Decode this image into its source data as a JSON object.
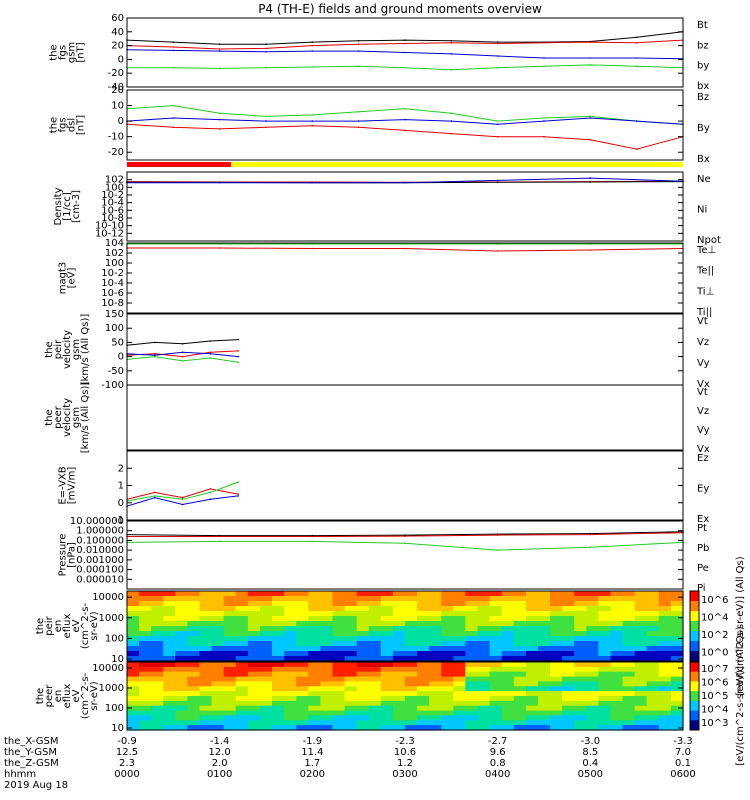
{
  "title": "P4 (TH-E) fields and ground moments overview",
  "date": "2019 Aug 18",
  "colors": {
    "black": "#000000",
    "red": "#e00000",
    "green": "#22cc22",
    "blue": "#0000d0",
    "bar_red": "#ff0000",
    "bar_yellow": "#ffff00"
  },
  "chart_data": [
    {
      "type": "line",
      "id": "fgs_gsm_total",
      "ylabel": [
        "the",
        "fgs",
        "gsm",
        "[nT]"
      ],
      "ylim": [
        -40,
        60
      ],
      "ticks": [
        -40,
        -20,
        0,
        20,
        40,
        60
      ],
      "tick_labels": [
        "-40",
        "-20",
        "0",
        "20",
        "40",
        "60"
      ],
      "legend": [
        {
          "name": "Bt",
          "color": "black"
        },
        {
          "name": "bz",
          "color": "red"
        },
        {
          "name": "by",
          "color": "green"
        },
        {
          "name": "bx",
          "color": "blue"
        }
      ],
      "series": [
        {
          "name": "Bt",
          "color": "black",
          "x": [
            0,
            0.5,
            1,
            1.5,
            2,
            2.5,
            3,
            3.5,
            4,
            4.5,
            5,
            5.5,
            6
          ],
          "y": [
            28,
            25,
            22,
            22,
            25,
            27,
            28,
            27,
            25,
            25,
            26,
            32,
            40
          ]
        },
        {
          "name": "bz",
          "color": "red",
          "x": [
            0,
            0.5,
            1,
            1.5,
            2,
            2.5,
            3,
            3.5,
            4,
            4.5,
            5,
            5.5,
            6
          ],
          "y": [
            20,
            18,
            15,
            16,
            20,
            22,
            23,
            24,
            23,
            24,
            25,
            24,
            28
          ]
        },
        {
          "name": "by",
          "color": "green",
          "x": [
            0,
            0.5,
            1,
            1.5,
            2,
            2.5,
            3,
            3.5,
            4,
            4.5,
            5,
            5.5,
            6
          ],
          "y": [
            -12,
            -12,
            -13,
            -12,
            -11,
            -10,
            -12,
            -15,
            -12,
            -10,
            -8,
            -10,
            -12
          ]
        },
        {
          "name": "bx",
          "color": "blue",
          "x": [
            0,
            0.5,
            1,
            1.5,
            2,
            2.5,
            3,
            3.5,
            4,
            4.5,
            5,
            5.5,
            6
          ],
          "y": [
            14,
            13,
            12,
            11,
            12,
            12,
            10,
            8,
            5,
            2,
            2,
            2,
            1
          ]
        }
      ]
    },
    {
      "type": "line",
      "id": "fgs_dsl",
      "ylabel": [
        "the",
        "fgs",
        "dsl",
        "[nT]"
      ],
      "ylim": [
        -25,
        20
      ],
      "ticks": [
        -20,
        -10,
        0,
        10,
        20
      ],
      "tick_labels": [
        "-20",
        "-10",
        "0",
        "10",
        "20"
      ],
      "legend": [
        {
          "name": "Bz",
          "color": "red"
        },
        {
          "name": "By",
          "color": "green"
        },
        {
          "name": "Bx",
          "color": "blue"
        }
      ],
      "series": [
        {
          "name": "Bz",
          "color": "red",
          "x": [
            0,
            0.5,
            1,
            1.5,
            2,
            2.5,
            3,
            3.5,
            4,
            4.5,
            5,
            5.5,
            6
          ],
          "y": [
            -2,
            -4,
            -5,
            -4,
            -3,
            -4,
            -6,
            -8,
            -10,
            -10,
            -12,
            -18,
            -10
          ]
        },
        {
          "name": "By",
          "color": "green",
          "x": [
            0,
            0.5,
            1,
            1.5,
            2,
            2.5,
            3,
            3.5,
            4,
            4.5,
            5,
            5.5,
            6
          ],
          "y": [
            8,
            10,
            5,
            3,
            4,
            6,
            8,
            5,
            0,
            2,
            3,
            0,
            -2
          ]
        },
        {
          "name": "Bx",
          "color": "blue",
          "x": [
            0,
            0.5,
            1,
            1.5,
            2,
            2.5,
            3,
            3.5,
            4,
            4.5,
            5,
            5.5,
            6
          ],
          "y": [
            0,
            2,
            1,
            0,
            0,
            0,
            1,
            0,
            -2,
            0,
            2,
            0,
            -2
          ]
        }
      ]
    },
    {
      "type": "line",
      "id": "density",
      "ylabel": [
        "Density",
        "[1/cc]",
        "[cm-3]"
      ],
      "ylog": true,
      "ylim": [
        -14,
        4
      ],
      "ticks": [
        -12,
        -10,
        -8,
        -6,
        -4,
        -2,
        0,
        2
      ],
      "tick_labels": [
        "10-12",
        "10-10",
        "10-8",
        "10-6",
        "10-4",
        "10-2",
        "100",
        "102"
      ],
      "legend": [
        {
          "name": "Ne",
          "color": "red"
        },
        {
          "name": "Ni",
          "color": "black"
        },
        {
          "name": "Npot",
          "color": "blue"
        }
      ],
      "series": [
        {
          "name": "Ne",
          "color": "red",
          "x": [
            0,
            1,
            2,
            3,
            4,
            5,
            6
          ],
          "y": [
            1.5,
            1.4,
            1.4,
            1.3,
            1.4,
            1.5,
            1.6
          ]
        },
        {
          "name": "Ni",
          "color": "black",
          "x": [
            0,
            1,
            2,
            3,
            4,
            5,
            6
          ],
          "y": [
            1.3,
            1.3,
            1.2,
            1.2,
            1.3,
            1.4,
            1.5
          ]
        },
        {
          "name": "Npot",
          "color": "blue",
          "x": [
            0,
            1,
            2,
            3,
            4,
            5,
            6
          ],
          "y": [
            1.2,
            1.2,
            1.2,
            1.2,
            1.8,
            2.4,
            1.6
          ]
        }
      ]
    },
    {
      "type": "line",
      "id": "temperature",
      "ylabel": [
        "magt3",
        "[eV]"
      ],
      "ylog": true,
      "ylim": [
        -10,
        4
      ],
      "ticks": [
        -8,
        -6,
        -4,
        -2,
        0,
        2,
        4
      ],
      "tick_labels": [
        "10-8",
        "10-6",
        "10-4",
        "10-2",
        "100",
        "102",
        "104"
      ],
      "legend": [
        {
          "name": "Te⊥",
          "color": "red"
        },
        {
          "name": "Te||",
          "color": "black"
        },
        {
          "name": "Ti⊥",
          "color": "blue"
        },
        {
          "name": "Ti||",
          "color": "green"
        }
      ],
      "series": [
        {
          "name": "Te⊥",
          "color": "red",
          "x": [
            0,
            1,
            2,
            3,
            4,
            5,
            6
          ],
          "y": [
            3.0,
            3.0,
            2.9,
            2.9,
            2.4,
            2.6,
            2.9
          ]
        },
        {
          "name": "Ti||",
          "color": "green",
          "x": [
            0,
            1,
            2,
            3,
            4,
            5,
            6
          ],
          "y": [
            3.8,
            3.8,
            3.8,
            3.8,
            3.8,
            3.8,
            3.8
          ]
        }
      ]
    },
    {
      "type": "line",
      "id": "peir_velocity",
      "ylabel": [
        "the",
        "peir",
        "velocity",
        "gsm",
        "[km/s (All Qs)]"
      ],
      "ylim": [
        -100,
        150
      ],
      "ticks": [
        -100,
        -50,
        0,
        50,
        100,
        150
      ],
      "tick_labels": [
        "-100",
        "-50",
        "0",
        "50",
        "100",
        "150"
      ],
      "legend": [
        {
          "name": "Vt",
          "color": "black"
        },
        {
          "name": "Vz",
          "color": "red"
        },
        {
          "name": "Vy",
          "color": "green"
        },
        {
          "name": "Vx",
          "color": "blue"
        }
      ],
      "series": [
        {
          "name": "Vt",
          "color": "black",
          "x": [
            0,
            0.3,
            0.6,
            0.9,
            1.2
          ],
          "y": [
            40,
            50,
            45,
            55,
            60
          ]
        },
        {
          "name": "Vz",
          "color": "red",
          "x": [
            0,
            0.3,
            0.6,
            0.9,
            1.2
          ],
          "y": [
            5,
            10,
            0,
            15,
            20
          ]
        },
        {
          "name": "Vy",
          "color": "green",
          "x": [
            0,
            0.3,
            0.6,
            0.9,
            1.2
          ],
          "y": [
            -10,
            0,
            -15,
            -5,
            -20
          ]
        },
        {
          "name": "Vx",
          "color": "blue",
          "x": [
            0,
            0.3,
            0.6,
            0.9,
            1.2
          ],
          "y": [
            10,
            5,
            15,
            10,
            0
          ]
        }
      ]
    },
    {
      "type": "line",
      "id": "peer_velocity",
      "ylabel": [
        "the",
        "peer",
        "velocity",
        "gsm",
        "[km/s (All Qs)]"
      ],
      "ylim": [
        -100,
        150
      ],
      "ticks": [],
      "tick_labels": [],
      "legend": [
        {
          "name": "Vt",
          "color": "black"
        },
        {
          "name": "Vz",
          "color": "red"
        },
        {
          "name": "Vy",
          "color": "green"
        },
        {
          "name": "Vx",
          "color": "blue"
        }
      ],
      "series": []
    },
    {
      "type": "line",
      "id": "efield",
      "ylabel": [
        "E=-VXB",
        "[mV/m]"
      ],
      "ylim": [
        -1,
        3
      ],
      "ticks": [
        -1,
        0,
        1,
        2
      ],
      "tick_labels": [
        "-1",
        "0",
        "1",
        "2"
      ],
      "legend": [
        {
          "name": "Ez",
          "color": "red"
        },
        {
          "name": "Ey",
          "color": "green"
        },
        {
          "name": "Ex",
          "color": "blue"
        }
      ],
      "series": [
        {
          "name": "Ez",
          "color": "red",
          "x": [
            0,
            0.3,
            0.6,
            0.9,
            1.2
          ],
          "y": [
            0.2,
            0.6,
            0.3,
            0.8,
            0.5
          ]
        },
        {
          "name": "Ey",
          "color": "green",
          "x": [
            0,
            0.3,
            0.6,
            0.9,
            1.2
          ],
          "y": [
            0.1,
            0.4,
            0.2,
            0.6,
            1.2
          ]
        },
        {
          "name": "Ex",
          "color": "blue",
          "x": [
            0,
            0.3,
            0.6,
            0.9,
            1.2
          ],
          "y": [
            -0.2,
            0.3,
            -0.1,
            0.2,
            0.4
          ]
        }
      ]
    },
    {
      "type": "line",
      "id": "pressure",
      "ylabel": [
        "Pressure",
        "[nPa]"
      ],
      "ylog": true,
      "ylim": [
        -6,
        1
      ],
      "ticks": [
        -5,
        -4,
        -3,
        -2,
        -1,
        0,
        1
      ],
      "tick_labels": [
        "0.000010",
        "0.000100",
        "0.001000",
        "0.010000",
        "0.100000",
        "1.000000",
        "10.000000"
      ],
      "legend": [
        {
          "name": "Pt",
          "color": "black"
        },
        {
          "name": "Pb",
          "color": "red"
        },
        {
          "name": "Pe",
          "color": "green"
        },
        {
          "name": "Pi",
          "color": "blue"
        }
      ],
      "series": [
        {
          "name": "Pt",
          "color": "black",
          "x": [
            0,
            1,
            2,
            3,
            4,
            5,
            6
          ],
          "y": [
            -0.4,
            -0.5,
            -0.5,
            -0.45,
            -0.35,
            -0.3,
            -0.1
          ]
        },
        {
          "name": "Pb",
          "color": "red",
          "x": [
            0,
            1,
            2,
            3,
            4,
            5,
            6
          ],
          "y": [
            -0.6,
            -0.6,
            -0.6,
            -0.55,
            -0.45,
            -0.4,
            -0.2
          ]
        },
        {
          "name": "Pe",
          "color": "green",
          "x": [
            0,
            1,
            2,
            3,
            4,
            5,
            6
          ],
          "y": [
            -1.2,
            -1.1,
            -1.1,
            -1.3,
            -2.0,
            -1.7,
            -1.2
          ]
        }
      ]
    },
    {
      "type": "heatmap",
      "id": "peir_eflux",
      "ylabel": [
        "the",
        "peir",
        "en",
        "eflux",
        "eV",
        "(cm^2-s-",
        "sr-eV)"
      ],
      "ylog": true,
      "ylim": [
        0.9,
        4.3
      ],
      "ticks": [
        1,
        2,
        3,
        4
      ],
      "tick_labels": [
        "10",
        "100",
        "1000",
        "10000"
      ],
      "colorbar": {
        "label": "[eV/(cm^2-s-sr-eV)] (All Qs)",
        "tick_labels": [
          "10^0",
          "10^2",
          "10^4",
          "10^6"
        ]
      }
    },
    {
      "type": "heatmap",
      "id": "peer_eflux",
      "ylabel": [
        "the",
        "peer",
        "en",
        "eflux",
        "eV",
        "(cm^2-s-",
        "sr-eV)"
      ],
      "ylog": true,
      "ylim": [
        0.9,
        4.3
      ],
      "ticks": [
        1,
        2,
        3,
        4
      ],
      "tick_labels": [
        "10",
        "100",
        "1000",
        "10000"
      ],
      "colorbar": {
        "label": "[eV/(cm^2-s-sr-eV)] (All Qs)",
        "tick_labels": [
          "10^3",
          "10^4",
          "10^5",
          "10^6",
          "10^7"
        ]
      }
    }
  ],
  "footer": {
    "rows": [
      {
        "label": "the_X-GSM",
        "values": [
          "-0.9",
          "-1.4",
          "-1.9",
          "-2.3",
          "-2.7",
          "-3.0",
          "-3.3"
        ]
      },
      {
        "label": "the_Y-GSM",
        "values": [
          "12.5",
          "12.0",
          "11.4",
          "10.6",
          "9.6",
          "8.5",
          "7.0"
        ]
      },
      {
        "label": "the_Z-GSM",
        "values": [
          "2.3",
          "2.0",
          "1.7",
          "1.2",
          "0.8",
          "0.4",
          "0.1"
        ]
      },
      {
        "label": "hhmm",
        "values": [
          "0000",
          "0100",
          "0200",
          "0300",
          "0400",
          "0500",
          "0600"
        ]
      }
    ]
  }
}
